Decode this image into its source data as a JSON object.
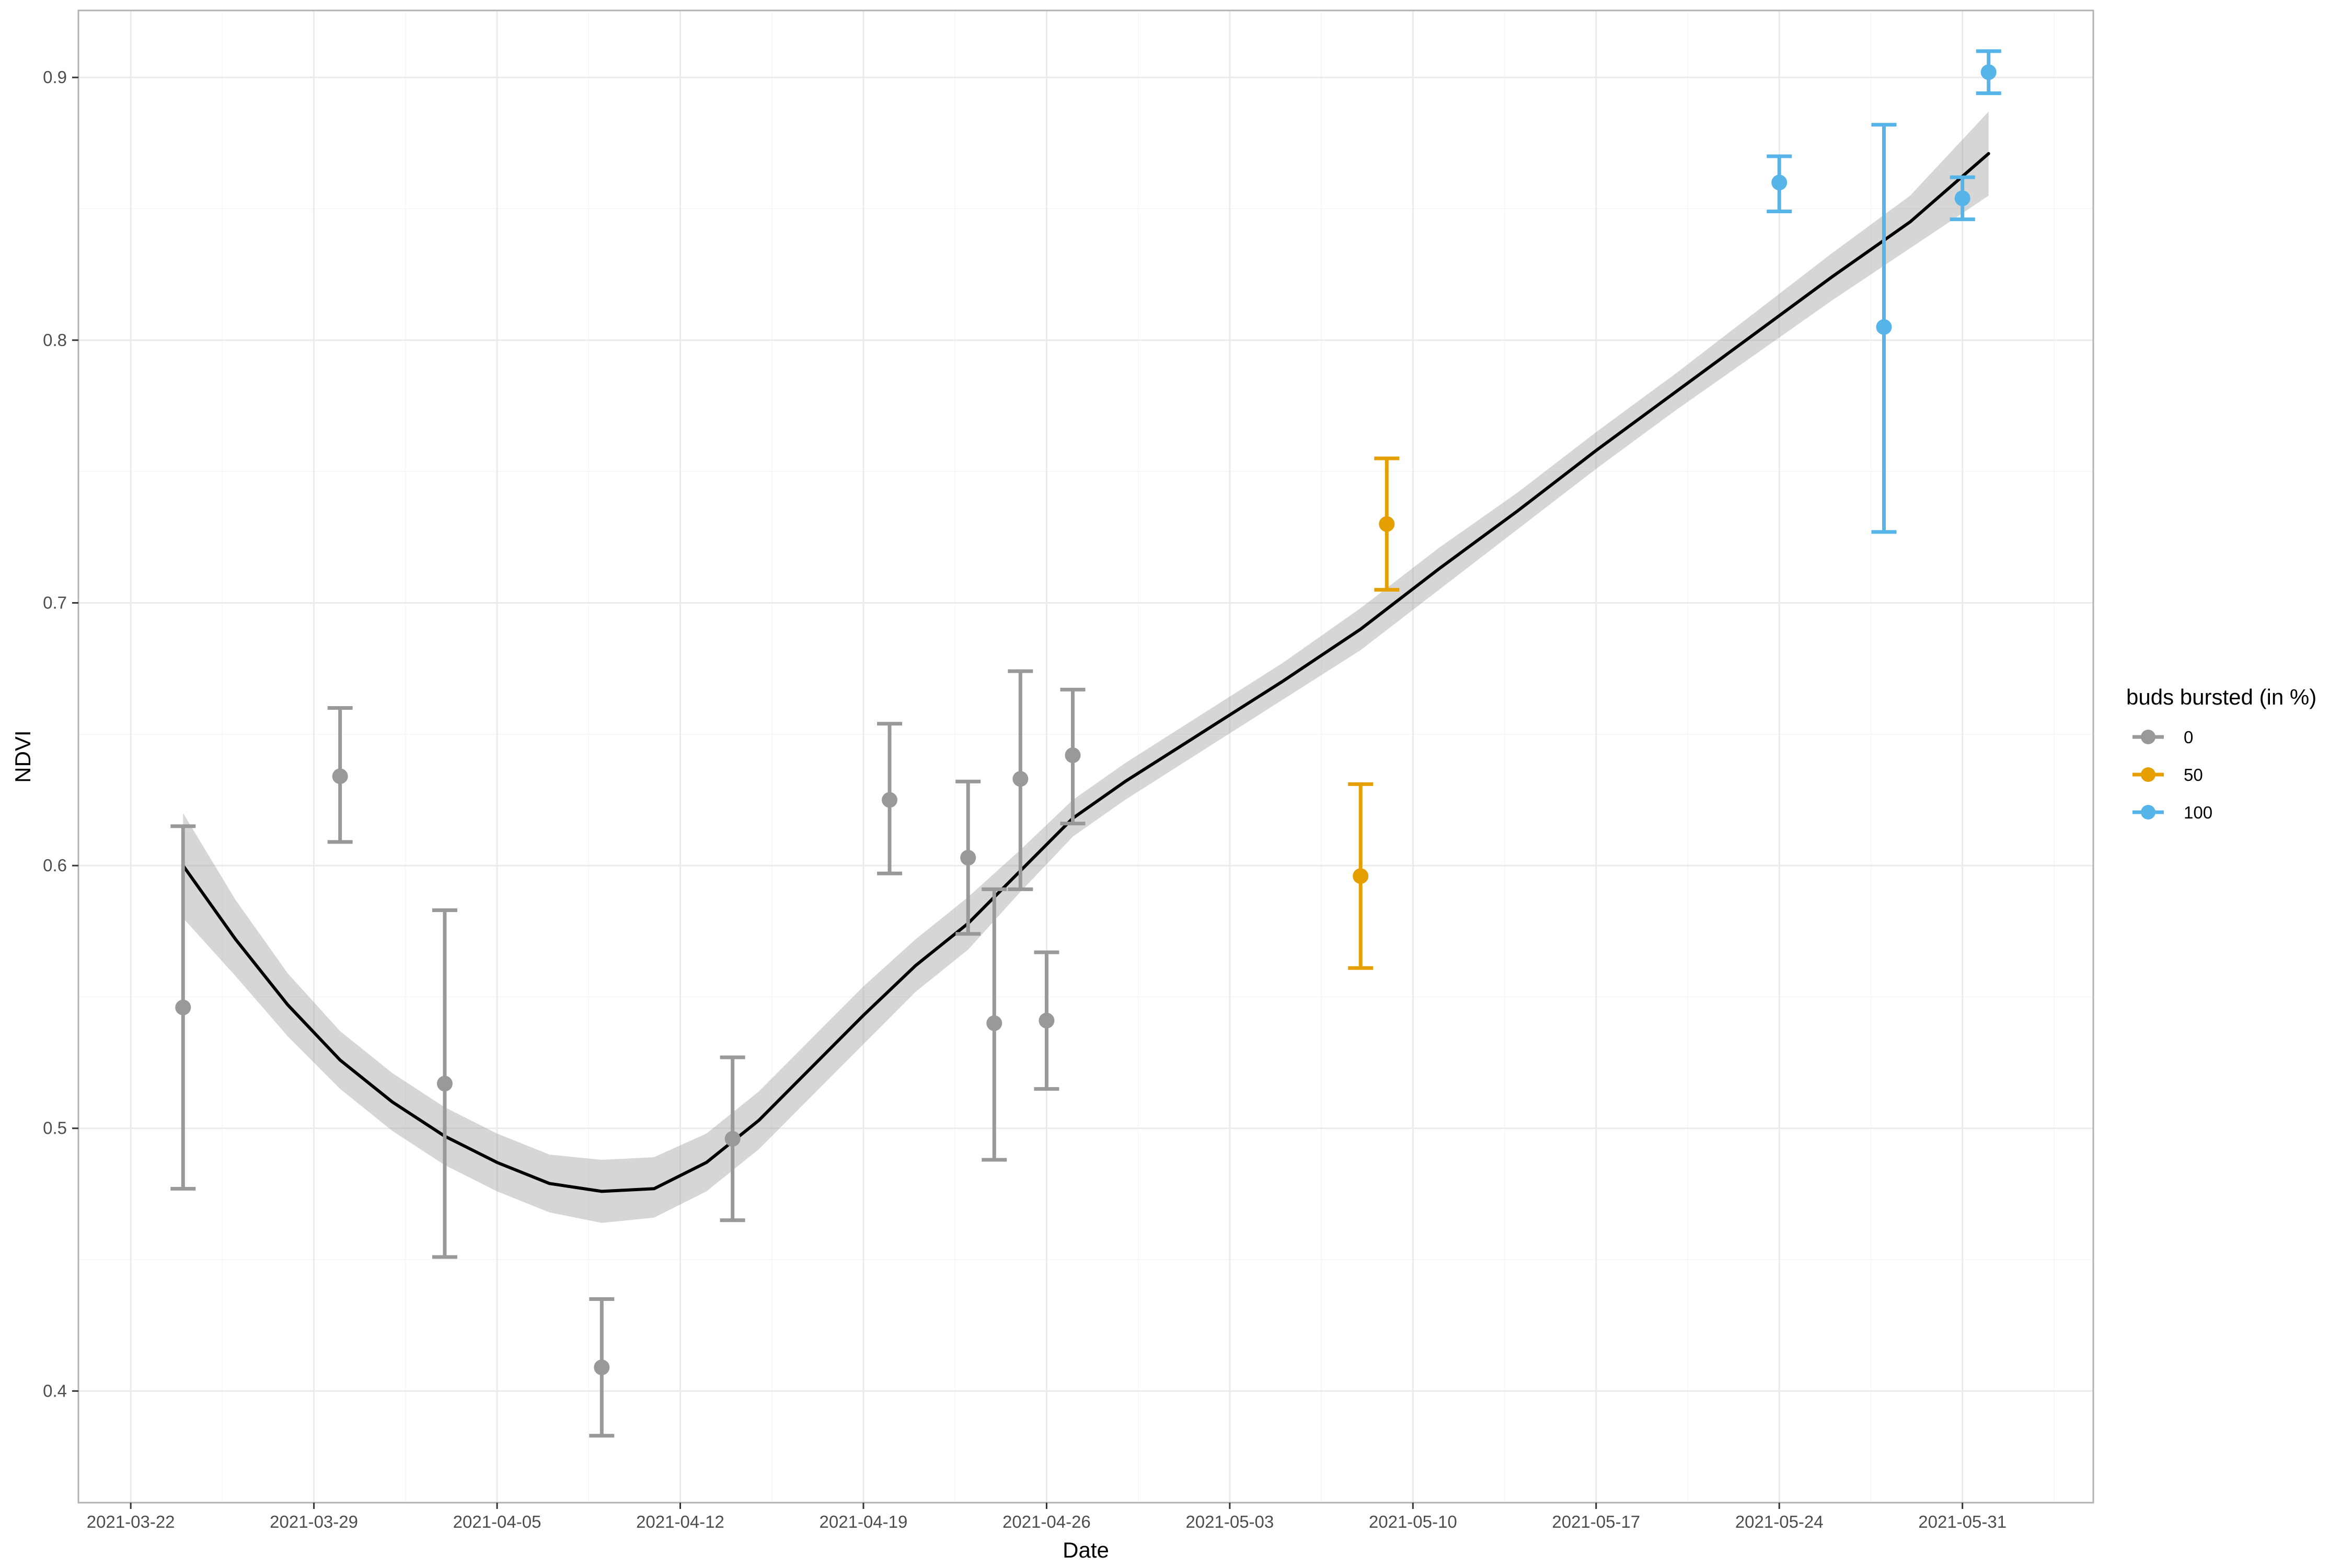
{
  "chart_data": {
    "type": "scatter",
    "title": "",
    "xlabel": "Date",
    "ylabel": "NDVI",
    "x_ticks": [
      "2021-03-22",
      "2021-03-29",
      "2021-04-05",
      "2021-04-12",
      "2021-04-19",
      "2021-04-26",
      "2021-05-03",
      "2021-05-10",
      "2021-05-17",
      "2021-05-24",
      "2021-05-31"
    ],
    "y_ticks": [
      "0.4",
      "0.5",
      "0.6",
      "0.7",
      "0.8",
      "0.9"
    ],
    "xlim": [
      "2021-03-20",
      "2021-06-05"
    ],
    "ylim": [
      0.3575,
      0.9255
    ],
    "grid": true,
    "legend": {
      "title": "buds bursted (in %)",
      "placement": "right",
      "entries": [
        {
          "label": "0",
          "color": "#999999"
        },
        {
          "label": "50",
          "color": "#E69F00"
        },
        {
          "label": "100",
          "color": "#56B4E9"
        }
      ]
    },
    "points": [
      {
        "x": "2021-03-24",
        "y": 0.546,
        "ymin": 0.477,
        "ymax": 0.615,
        "group": "0"
      },
      {
        "x": "2021-03-30",
        "y": 0.634,
        "ymin": 0.609,
        "ymax": 0.66,
        "group": "0"
      },
      {
        "x": "2021-04-03",
        "y": 0.517,
        "ymin": 0.451,
        "ymax": 0.583,
        "group": "0"
      },
      {
        "x": "2021-04-09",
        "y": 0.409,
        "ymin": 0.383,
        "ymax": 0.435,
        "group": "0"
      },
      {
        "x": "2021-04-14",
        "y": 0.496,
        "ymin": 0.465,
        "ymax": 0.527,
        "group": "0"
      },
      {
        "x": "2021-04-20",
        "y": 0.625,
        "ymin": 0.597,
        "ymax": 0.654,
        "group": "0"
      },
      {
        "x": "2021-04-23",
        "y": 0.603,
        "ymin": 0.574,
        "ymax": 0.632,
        "group": "0"
      },
      {
        "x": "2021-04-24",
        "y": 0.54,
        "ymin": 0.488,
        "ymax": 0.591,
        "group": "0"
      },
      {
        "x": "2021-04-25",
        "y": 0.633,
        "ymin": 0.591,
        "ymax": 0.674,
        "group": "0"
      },
      {
        "x": "2021-04-26",
        "y": 0.541,
        "ymin": 0.515,
        "ymax": 0.567,
        "group": "0"
      },
      {
        "x": "2021-04-27",
        "y": 0.642,
        "ymin": 0.616,
        "ymax": 0.667,
        "group": "0"
      },
      {
        "x": "2021-05-08",
        "y": 0.596,
        "ymin": 0.561,
        "ymax": 0.631,
        "group": "50"
      },
      {
        "x": "2021-05-09",
        "y": 0.73,
        "ymin": 0.705,
        "ymax": 0.755,
        "group": "50"
      },
      {
        "x": "2021-05-24",
        "y": 0.86,
        "ymin": 0.849,
        "ymax": 0.87,
        "group": "100"
      },
      {
        "x": "2021-05-28",
        "y": 0.805,
        "ymin": 0.727,
        "ymax": 0.882,
        "group": "100"
      },
      {
        "x": "2021-05-31",
        "y": 0.854,
        "ymin": 0.846,
        "ymax": 0.862,
        "group": "100"
      },
      {
        "x": "2021-06-01",
        "y": 0.902,
        "ymin": 0.894,
        "ymax": 0.91,
        "group": "100"
      }
    ],
    "smooth": {
      "color": "#000000",
      "band_color": "#999999",
      "x": [
        "2021-03-24",
        "2021-03-26",
        "2021-03-28",
        "2021-03-30",
        "2021-04-01",
        "2021-04-03",
        "2021-04-05",
        "2021-04-07",
        "2021-04-09",
        "2021-04-11",
        "2021-04-13",
        "2021-04-15",
        "2021-04-17",
        "2021-04-19",
        "2021-04-21",
        "2021-04-23",
        "2021-04-25",
        "2021-04-27",
        "2021-04-29",
        "2021-05-02",
        "2021-05-05",
        "2021-05-08",
        "2021-05-11",
        "2021-05-14",
        "2021-05-17",
        "2021-05-20",
        "2021-05-23",
        "2021-05-26",
        "2021-05-29",
        "2021-06-01"
      ],
      "y": [
        0.6,
        0.572,
        0.547,
        0.526,
        0.51,
        0.497,
        0.487,
        0.479,
        0.476,
        0.477,
        0.487,
        0.503,
        0.523,
        0.543,
        0.562,
        0.578,
        0.598,
        0.618,
        0.632,
        0.651,
        0.67,
        0.69,
        0.713,
        0.735,
        0.758,
        0.78,
        0.802,
        0.824,
        0.845,
        0.871
      ],
      "ymin": [
        0.58,
        0.558,
        0.535,
        0.515,
        0.499,
        0.486,
        0.476,
        0.468,
        0.464,
        0.466,
        0.476,
        0.492,
        0.512,
        0.532,
        0.552,
        0.568,
        0.59,
        0.611,
        0.625,
        0.644,
        0.663,
        0.682,
        0.705,
        0.728,
        0.751,
        0.773,
        0.794,
        0.815,
        0.835,
        0.855
      ],
      "ymax": [
        0.62,
        0.587,
        0.559,
        0.537,
        0.521,
        0.508,
        0.498,
        0.49,
        0.488,
        0.489,
        0.498,
        0.514,
        0.534,
        0.554,
        0.572,
        0.588,
        0.606,
        0.625,
        0.639,
        0.658,
        0.677,
        0.698,
        0.721,
        0.742,
        0.765,
        0.787,
        0.81,
        0.833,
        0.855,
        0.887
      ]
    }
  }
}
